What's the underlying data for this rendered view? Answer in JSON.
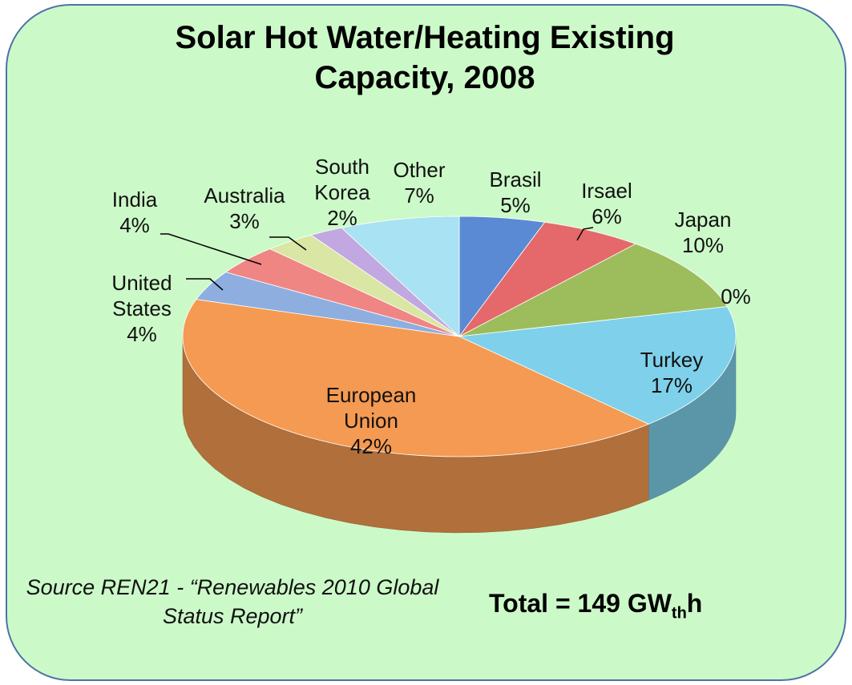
{
  "chart_data": {
    "type": "pie3d",
    "title": "Solar Hot Water/Heating Existing Capacity, 2008",
    "categories": [
      "Brasil",
      "Irsael",
      "Japan",
      null,
      "Turkey",
      "European Union",
      "United States",
      "India",
      "Australia",
      "South Korea",
      "Other"
    ],
    "values": [
      5,
      6,
      10,
      0,
      17,
      42,
      4,
      4,
      3,
      2,
      7
    ],
    "value_labels": [
      "5%",
      "6%",
      "10%",
      "0%",
      "17%",
      "42%",
      "4%",
      "4%",
      "3%",
      "2%",
      "7%"
    ],
    "colors": [
      "#5a8ad4",
      "#e5696a",
      "#9dbd5c",
      "#8064a2",
      "#7fd0ea",
      "#f59a52",
      "#8eaee0",
      "#ef8683",
      "#d9e6a4",
      "#c2a8e0",
      "#a9e2f2"
    ],
    "source": "Source REN21 - “Renewables 2010 Global Status Report”",
    "total": {
      "text": "Total = 149 GW",
      "sub": "th",
      "unit": "h"
    }
  }
}
